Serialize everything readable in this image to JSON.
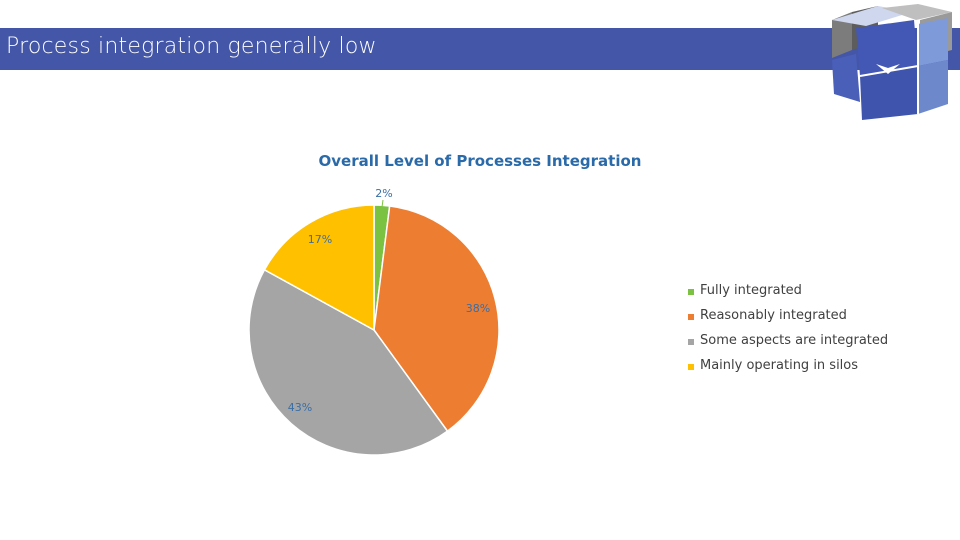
{
  "slide": {
    "title": "Process integration generally low"
  },
  "logo": {
    "icon": "cube-logo-icon",
    "colors": [
      "#7c7c7c",
      "#aeaeae",
      "#4358b5",
      "#7f9ad8",
      "#cfd7ee"
    ]
  },
  "chart_data": {
    "type": "pie",
    "title": "Overall Level of Processes Integration",
    "categories": [
      "Fully integrated",
      "Reasonably integrated",
      "Some aspects are integrated",
      "Mainly operating in silos"
    ],
    "values": [
      2,
      38,
      43,
      17
    ],
    "labels": [
      "2%",
      "38%",
      "43%",
      "17%"
    ],
    "colors": [
      "#7cc242",
      "#ed7d31",
      "#a5a5a5",
      "#ffc000"
    ],
    "legend_position": "right",
    "start_angle_deg": 0,
    "direction": "clockwise"
  }
}
